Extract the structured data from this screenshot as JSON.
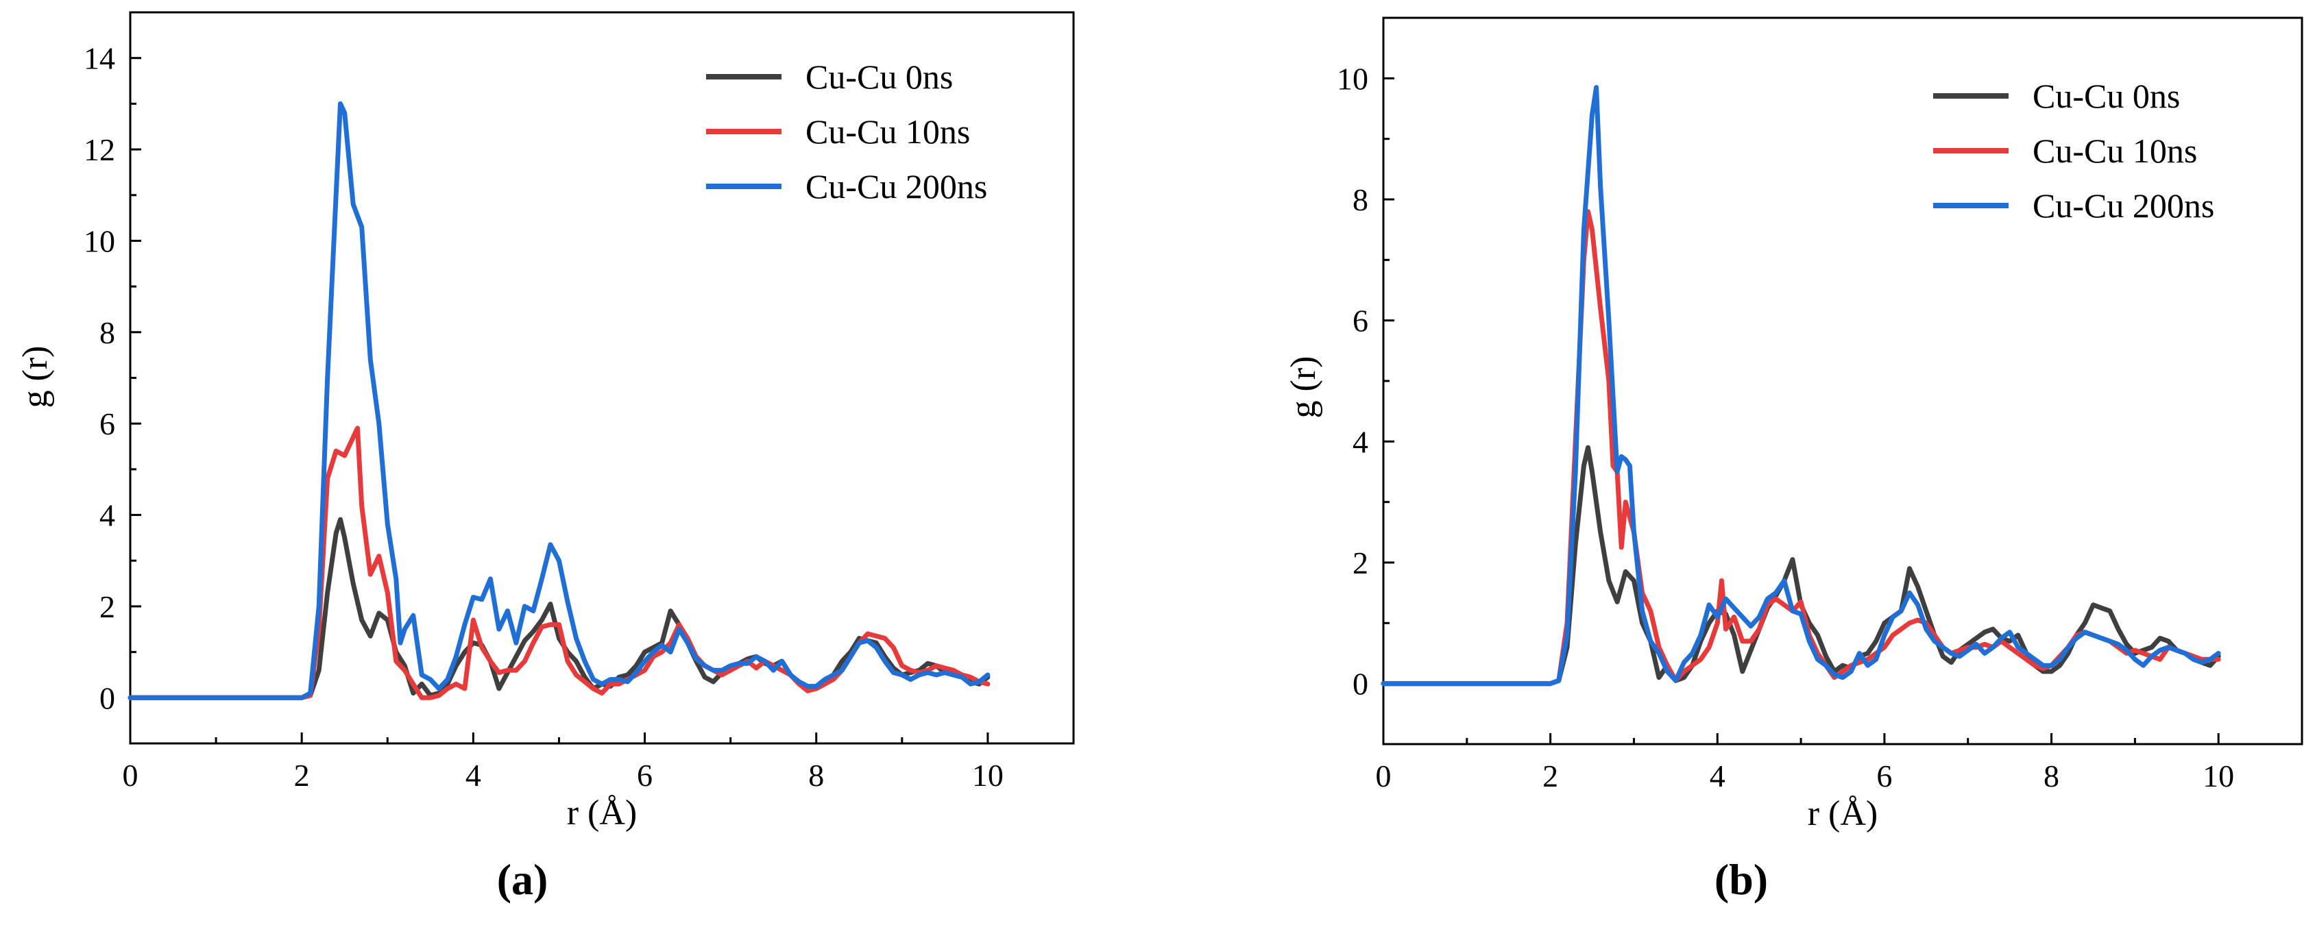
{
  "chart_data": [
    {
      "type": "line",
      "panel_label": "(a)",
      "xlabel": "r (Å)",
      "ylabel": "g (r)",
      "xlim": [
        0,
        11
      ],
      "ylim": [
        -1,
        15
      ],
      "xticks": [
        0,
        2,
        4,
        6,
        8,
        10
      ],
      "yticks": [
        0,
        2,
        4,
        6,
        8,
        10,
        12,
        14
      ],
      "xticklabels": [
        "0",
        "2",
        "4",
        "6",
        "8",
        "10"
      ],
      "yticklabels": [
        "0",
        "2",
        "4",
        "6",
        "8",
        "10",
        "12",
        "14"
      ],
      "legend_position": "top-right",
      "series": [
        {
          "name": "Cu-Cu 0ns",
          "color": "#3f3f3f",
          "x": [
            0,
            2.0,
            2.1,
            2.2,
            2.3,
            2.4,
            2.45,
            2.5,
            2.6,
            2.7,
            2.8,
            2.9,
            3.0,
            3.1,
            3.2,
            3.3,
            3.4,
            3.5,
            3.6,
            3.7,
            3.8,
            3.9,
            4.0,
            4.1,
            4.2,
            4.3,
            4.4,
            4.5,
            4.6,
            4.7,
            4.8,
            4.9,
            5.0,
            5.1,
            5.2,
            5.3,
            5.4,
            5.5,
            5.6,
            5.7,
            5.8,
            5.9,
            6.0,
            6.1,
            6.2,
            6.3,
            6.35,
            6.4,
            6.5,
            6.6,
            6.7,
            6.8,
            6.9,
            7.0,
            7.1,
            7.2,
            7.3,
            7.4,
            7.5,
            7.6,
            7.7,
            7.8,
            7.9,
            8.0,
            8.1,
            8.2,
            8.3,
            8.4,
            8.5,
            8.6,
            8.7,
            8.8,
            8.9,
            9.0,
            9.1,
            9.2,
            9.3,
            9.4,
            9.5,
            9.6,
            9.7,
            9.8,
            9.9,
            10.0
          ],
          "y": [
            0,
            0,
            0.05,
            0.6,
            2.3,
            3.6,
            3.9,
            3.5,
            2.5,
            1.7,
            1.35,
            1.85,
            1.7,
            1.0,
            0.7,
            0.1,
            0.3,
            0.05,
            0.1,
            0.3,
            0.7,
            1.0,
            1.2,
            1.15,
            0.8,
            0.2,
            0.55,
            0.9,
            1.25,
            1.45,
            1.7,
            2.05,
            1.3,
            1.0,
            0.8,
            0.45,
            0.2,
            0.3,
            0.25,
            0.45,
            0.5,
            0.7,
            1.0,
            1.1,
            1.2,
            1.9,
            1.75,
            1.6,
            1.2,
            0.8,
            0.45,
            0.35,
            0.55,
            0.65,
            0.75,
            0.85,
            0.9,
            0.75,
            0.7,
            0.8,
            0.5,
            0.3,
            0.2,
            0.2,
            0.3,
            0.5,
            0.8,
            1.0,
            1.3,
            1.25,
            1.2,
            0.9,
            0.65,
            0.5,
            0.55,
            0.6,
            0.75,
            0.7,
            0.55,
            0.5,
            0.45,
            0.35,
            0.3,
            0.45
          ]
        },
        {
          "name": "Cu-Cu 10ns",
          "color": "#e8393b",
          "x": [
            0,
            2.0,
            2.1,
            2.2,
            2.3,
            2.4,
            2.5,
            2.6,
            2.65,
            2.7,
            2.8,
            2.9,
            3.0,
            3.1,
            3.2,
            3.3,
            3.4,
            3.5,
            3.6,
            3.7,
            3.8,
            3.9,
            4.0,
            4.1,
            4.2,
            4.3,
            4.4,
            4.5,
            4.6,
            4.7,
            4.8,
            4.9,
            5.0,
            5.1,
            5.2,
            5.3,
            5.4,
            5.5,
            5.6,
            5.7,
            5.8,
            5.9,
            6.0,
            6.1,
            6.2,
            6.3,
            6.4,
            6.5,
            6.6,
            6.7,
            6.8,
            6.9,
            7.0,
            7.1,
            7.2,
            7.3,
            7.4,
            7.5,
            7.6,
            7.7,
            7.8,
            7.9,
            8.0,
            8.1,
            8.2,
            8.3,
            8.4,
            8.5,
            8.6,
            8.7,
            8.8,
            8.9,
            9.0,
            9.1,
            9.2,
            9.3,
            9.4,
            9.5,
            9.6,
            9.7,
            9.8,
            9.9,
            10.0
          ],
          "y": [
            0,
            0,
            0.05,
            1.5,
            4.8,
            5.4,
            5.3,
            5.7,
            5.9,
            4.2,
            2.7,
            3.1,
            2.3,
            0.8,
            0.6,
            0.3,
            0.0,
            0.0,
            0.05,
            0.2,
            0.3,
            0.2,
            1.7,
            1.1,
            0.8,
            0.55,
            0.6,
            0.6,
            0.8,
            1.2,
            1.55,
            1.6,
            1.6,
            0.8,
            0.5,
            0.35,
            0.2,
            0.1,
            0.3,
            0.3,
            0.4,
            0.5,
            0.6,
            0.9,
            1.0,
            1.2,
            1.6,
            1.3,
            0.9,
            0.7,
            0.6,
            0.5,
            0.6,
            0.7,
            0.8,
            0.65,
            0.8,
            0.7,
            0.6,
            0.5,
            0.3,
            0.15,
            0.2,
            0.3,
            0.4,
            0.6,
            0.9,
            1.2,
            1.4,
            1.35,
            1.3,
            1.1,
            0.7,
            0.6,
            0.55,
            0.6,
            0.7,
            0.65,
            0.6,
            0.5,
            0.45,
            0.35,
            0.3
          ]
        },
        {
          "name": "Cu-Cu 200ns",
          "color": "#1f6fd6",
          "x": [
            0,
            2.0,
            2.1,
            2.2,
            2.3,
            2.4,
            2.45,
            2.5,
            2.6,
            2.7,
            2.8,
            2.9,
            3.0,
            3.1,
            3.15,
            3.2,
            3.3,
            3.4,
            3.5,
            3.6,
            3.7,
            3.8,
            3.9,
            4.0,
            4.1,
            4.2,
            4.3,
            4.4,
            4.5,
            4.6,
            4.7,
            4.8,
            4.9,
            5.0,
            5.1,
            5.2,
            5.3,
            5.4,
            5.5,
            5.6,
            5.7,
            5.8,
            5.9,
            6.0,
            6.1,
            6.2,
            6.3,
            6.4,
            6.5,
            6.6,
            6.7,
            6.8,
            6.9,
            7.0,
            7.1,
            7.2,
            7.3,
            7.4,
            7.5,
            7.6,
            7.7,
            7.8,
            7.9,
            8.0,
            8.1,
            8.2,
            8.3,
            8.4,
            8.5,
            8.6,
            8.7,
            8.8,
            8.9,
            9.0,
            9.1,
            9.2,
            9.3,
            9.4,
            9.5,
            9.6,
            9.7,
            9.8,
            9.9,
            10.0
          ],
          "y": [
            0,
            0,
            0.1,
            2.0,
            7.0,
            11.0,
            13.0,
            12.8,
            10.8,
            10.3,
            7.4,
            6.0,
            3.8,
            2.6,
            1.2,
            1.5,
            1.8,
            0.5,
            0.4,
            0.2,
            0.4,
            0.9,
            1.6,
            2.2,
            2.15,
            2.6,
            1.5,
            1.9,
            1.2,
            2.0,
            1.9,
            2.6,
            3.35,
            3.0,
            2.1,
            1.3,
            0.8,
            0.4,
            0.3,
            0.4,
            0.4,
            0.35,
            0.55,
            0.8,
            1.0,
            1.15,
            1.0,
            1.5,
            1.2,
            0.85,
            0.7,
            0.6,
            0.6,
            0.7,
            0.75,
            0.75,
            0.9,
            0.8,
            0.6,
            0.8,
            0.5,
            0.35,
            0.25,
            0.25,
            0.4,
            0.5,
            0.6,
            0.9,
            1.2,
            1.25,
            1.1,
            0.8,
            0.55,
            0.5,
            0.4,
            0.5,
            0.55,
            0.5,
            0.55,
            0.5,
            0.45,
            0.3,
            0.35,
            0.5
          ]
        }
      ]
    },
    {
      "type": "line",
      "panel_label": "(b)",
      "xlabel": "r (Å)",
      "ylabel": "g (r)",
      "xlim": [
        0,
        11
      ],
      "ylim": [
        -1,
        11
      ],
      "xticks": [
        0,
        2,
        4,
        6,
        8,
        10
      ],
      "yticks": [
        0,
        2,
        4,
        6,
        8,
        10
      ],
      "xticklabels": [
        "0",
        "2",
        "4",
        "6",
        "8",
        "10"
      ],
      "yticklabels": [
        "0",
        "2",
        "4",
        "6",
        "8",
        "10"
      ],
      "legend_position": "top-right",
      "series": [
        {
          "name": "Cu-Cu 0ns",
          "color": "#3f3f3f",
          "x": [
            0,
            2.0,
            2.1,
            2.2,
            2.3,
            2.4,
            2.45,
            2.5,
            2.6,
            2.7,
            2.8,
            2.9,
            3.0,
            3.1,
            3.2,
            3.3,
            3.4,
            3.5,
            3.6,
            3.7,
            3.8,
            3.9,
            4.0,
            4.1,
            4.2,
            4.3,
            4.4,
            4.5,
            4.6,
            4.7,
            4.8,
            4.9,
            5.0,
            5.1,
            5.2,
            5.3,
            5.4,
            5.5,
            5.6,
            5.7,
            5.8,
            5.9,
            6.0,
            6.1,
            6.2,
            6.3,
            6.35,
            6.4,
            6.5,
            6.6,
            6.7,
            6.8,
            6.9,
            7.0,
            7.1,
            7.2,
            7.3,
            7.4,
            7.5,
            7.6,
            7.7,
            7.8,
            7.9,
            8.0,
            8.1,
            8.2,
            8.3,
            8.4,
            8.5,
            8.6,
            8.7,
            8.8,
            8.9,
            9.0,
            9.1,
            9.2,
            9.3,
            9.4,
            9.5,
            9.6,
            9.7,
            9.8,
            9.9,
            10.0
          ],
          "y": [
            0,
            0,
            0.05,
            0.6,
            2.3,
            3.6,
            3.9,
            3.5,
            2.5,
            1.7,
            1.35,
            1.85,
            1.7,
            1.0,
            0.7,
            0.1,
            0.3,
            0.05,
            0.1,
            0.3,
            0.7,
            1.0,
            1.2,
            1.15,
            0.8,
            0.2,
            0.55,
            0.9,
            1.25,
            1.45,
            1.7,
            2.05,
            1.3,
            1.0,
            0.8,
            0.45,
            0.2,
            0.3,
            0.25,
            0.45,
            0.5,
            0.7,
            1.0,
            1.1,
            1.2,
            1.9,
            1.75,
            1.6,
            1.2,
            0.8,
            0.45,
            0.35,
            0.55,
            0.65,
            0.75,
            0.85,
            0.9,
            0.75,
            0.7,
            0.8,
            0.5,
            0.3,
            0.2,
            0.2,
            0.3,
            0.5,
            0.8,
            1.0,
            1.3,
            1.25,
            1.2,
            0.9,
            0.65,
            0.5,
            0.55,
            0.6,
            0.75,
            0.7,
            0.55,
            0.5,
            0.45,
            0.35,
            0.3,
            0.45
          ]
        },
        {
          "name": "Cu-Cu 10ns",
          "color": "#e8393b",
          "x": [
            0,
            2.0,
            2.1,
            2.2,
            2.3,
            2.4,
            2.45,
            2.5,
            2.6,
            2.7,
            2.75,
            2.8,
            2.85,
            2.9,
            3.0,
            3.1,
            3.2,
            3.3,
            3.4,
            3.5,
            3.6,
            3.7,
            3.8,
            3.9,
            4.0,
            4.05,
            4.1,
            4.2,
            4.3,
            4.4,
            4.5,
            4.6,
            4.7,
            4.8,
            4.9,
            5.0,
            5.1,
            5.2,
            5.3,
            5.4,
            5.5,
            5.6,
            5.7,
            5.8,
            5.9,
            6.0,
            6.1,
            6.2,
            6.3,
            6.4,
            6.5,
            6.6,
            6.7,
            6.8,
            6.9,
            7.0,
            7.1,
            7.2,
            7.3,
            7.4,
            7.5,
            7.6,
            7.7,
            7.8,
            7.9,
            8.0,
            8.1,
            8.2,
            8.3,
            8.4,
            8.5,
            8.6,
            8.7,
            8.8,
            8.9,
            9.0,
            9.1,
            9.2,
            9.3,
            9.4,
            9.5,
            9.6,
            9.7,
            9.8,
            9.9,
            10.0
          ],
          "y": [
            0,
            0,
            0.05,
            1.0,
            4.0,
            7.0,
            7.8,
            7.5,
            6.2,
            5.0,
            3.6,
            3.5,
            2.25,
            3.0,
            2.5,
            1.5,
            1.2,
            0.6,
            0.3,
            0.05,
            0.2,
            0.3,
            0.4,
            0.6,
            1.0,
            1.7,
            0.9,
            1.1,
            0.7,
            0.7,
            0.9,
            1.3,
            1.4,
            1.3,
            1.2,
            1.35,
            0.8,
            0.5,
            0.3,
            0.1,
            0.2,
            0.3,
            0.35,
            0.4,
            0.5,
            0.6,
            0.8,
            0.9,
            1.0,
            1.05,
            1.0,
            0.8,
            0.6,
            0.5,
            0.55,
            0.6,
            0.6,
            0.65,
            0.6,
            0.7,
            0.6,
            0.5,
            0.4,
            0.3,
            0.25,
            0.3,
            0.45,
            0.6,
            0.8,
            0.85,
            0.8,
            0.75,
            0.7,
            0.6,
            0.5,
            0.55,
            0.5,
            0.45,
            0.4,
            0.6,
            0.55,
            0.5,
            0.45,
            0.4,
            0.4,
            0.4
          ]
        },
        {
          "name": "Cu-Cu 200ns",
          "color": "#1f6fd6",
          "x": [
            0,
            2.0,
            2.1,
            2.2,
            2.3,
            2.4,
            2.5,
            2.55,
            2.6,
            2.7,
            2.8,
            2.85,
            2.9,
            2.95,
            3.0,
            3.1,
            3.2,
            3.3,
            3.4,
            3.5,
            3.6,
            3.7,
            3.8,
            3.9,
            4.0,
            4.1,
            4.2,
            4.3,
            4.4,
            4.5,
            4.6,
            4.7,
            4.8,
            4.9,
            5.0,
            5.1,
            5.2,
            5.3,
            5.4,
            5.5,
            5.6,
            5.7,
            5.8,
            5.9,
            6.0,
            6.1,
            6.2,
            6.3,
            6.4,
            6.5,
            6.6,
            6.7,
            6.8,
            6.9,
            7.0,
            7.1,
            7.2,
            7.3,
            7.4,
            7.5,
            7.6,
            7.7,
            7.8,
            7.9,
            8.0,
            8.1,
            8.2,
            8.3,
            8.4,
            8.5,
            8.6,
            8.7,
            8.8,
            8.9,
            9.0,
            9.1,
            9.2,
            9.3,
            9.4,
            9.5,
            9.6,
            9.7,
            9.8,
            9.9,
            10.0
          ],
          "y": [
            0,
            0,
            0.05,
            0.8,
            3.5,
            7.5,
            9.4,
            9.85,
            8.2,
            6.0,
            3.5,
            3.75,
            3.7,
            3.6,
            2.5,
            1.2,
            0.7,
            0.5,
            0.2,
            0.05,
            0.35,
            0.5,
            0.8,
            1.3,
            1.1,
            1.4,
            1.25,
            1.1,
            0.95,
            1.1,
            1.4,
            1.5,
            1.7,
            1.2,
            1.15,
            0.7,
            0.4,
            0.3,
            0.15,
            0.1,
            0.2,
            0.5,
            0.3,
            0.4,
            0.8,
            1.1,
            1.2,
            1.5,
            1.3,
            0.9,
            0.7,
            0.6,
            0.5,
            0.45,
            0.55,
            0.65,
            0.5,
            0.6,
            0.75,
            0.85,
            0.6,
            0.5,
            0.4,
            0.3,
            0.3,
            0.4,
            0.6,
            0.75,
            0.85,
            0.8,
            0.75,
            0.7,
            0.65,
            0.55,
            0.4,
            0.3,
            0.45,
            0.55,
            0.6,
            0.55,
            0.5,
            0.4,
            0.35,
            0.4,
            0.5
          ]
        }
      ]
    }
  ]
}
